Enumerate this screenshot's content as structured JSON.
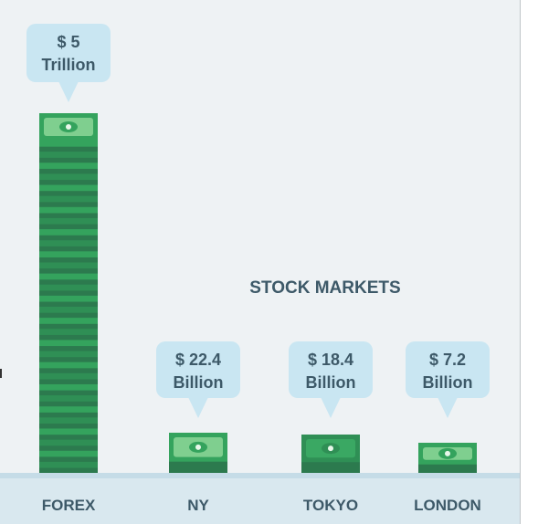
{
  "chart_data": {
    "type": "bar",
    "title": "",
    "group_label": "STOCK MARKETS",
    "categories": [
      "FOREX",
      "NY",
      "TOKYO",
      "LONDON"
    ],
    "values_usd": [
      5000000000000,
      22400000000,
      18400000000,
      7200000000
    ],
    "labels": [
      [
        "$ 5",
        "Trillion"
      ],
      [
        "$ 22.4",
        "Billion"
      ],
      [
        "$ 18.4",
        "Billion"
      ],
      [
        "$ 7.2",
        "Billion"
      ]
    ],
    "xlabel": "",
    "ylabel": "",
    "grid": false,
    "colors": {
      "background": "#eef2f4",
      "baseline_band": "#c5dce7",
      "bubble": "#c9e6f2",
      "text": "#3d5968",
      "bill_dark": "#2c7a4e",
      "bill_mid": "#34a35d",
      "bill_light": "#7fcf8f"
    }
  }
}
